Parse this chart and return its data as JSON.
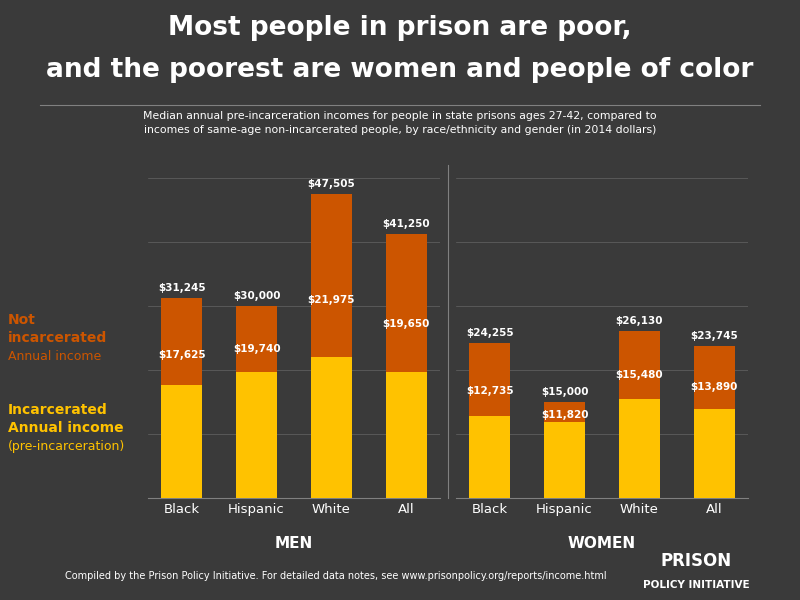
{
  "title_line1": "Most people in prison are poor,",
  "title_line2": "and the poorest are women and people of color",
  "subtitle": "Median annual pre-incarceration incomes for people in state prisons ages 27-42, compared to\nincomes of same-age non-incarcerated people, by race/ethnicity and gender (in 2014 dollars)",
  "footer": "Compiled by the Prison Policy Initiative. For detailed data notes, see www.prisonpolicy.org/reports/income.html",
  "background_color": "#3a3a3a",
  "bar_color_incarcerated": "#FFC200",
  "bar_color_not_incarcerated": "#CC5500",
  "men": {
    "categories": [
      "Black",
      "Hispanic",
      "White",
      "All"
    ],
    "incarcerated": [
      17625,
      19740,
      21975,
      19650
    ],
    "not_incarcerated": [
      31245,
      30000,
      47505,
      41250
    ]
  },
  "women": {
    "categories": [
      "Black",
      "Hispanic",
      "White",
      "All"
    ],
    "incarcerated": [
      12735,
      11820,
      15480,
      13890
    ],
    "not_incarcerated": [
      24255,
      15000,
      26130,
      23745
    ]
  },
  "legend_orange_label_line1": "Not",
  "legend_orange_label_line2": "incarcerated",
  "legend_orange_label_line3": "Annual income",
  "legend_yellow_label_line1": "Incarcerated",
  "legend_yellow_label_line2": "Annual income",
  "legend_yellow_label_line3": "(pre-incarceration)",
  "ylim": [
    0,
    52000
  ],
  "group_label_men": "MEN",
  "group_label_women": "WOMEN",
  "footer_logo_line1": "PRISON",
  "footer_logo_line2": "POLICY INITIATIVE"
}
